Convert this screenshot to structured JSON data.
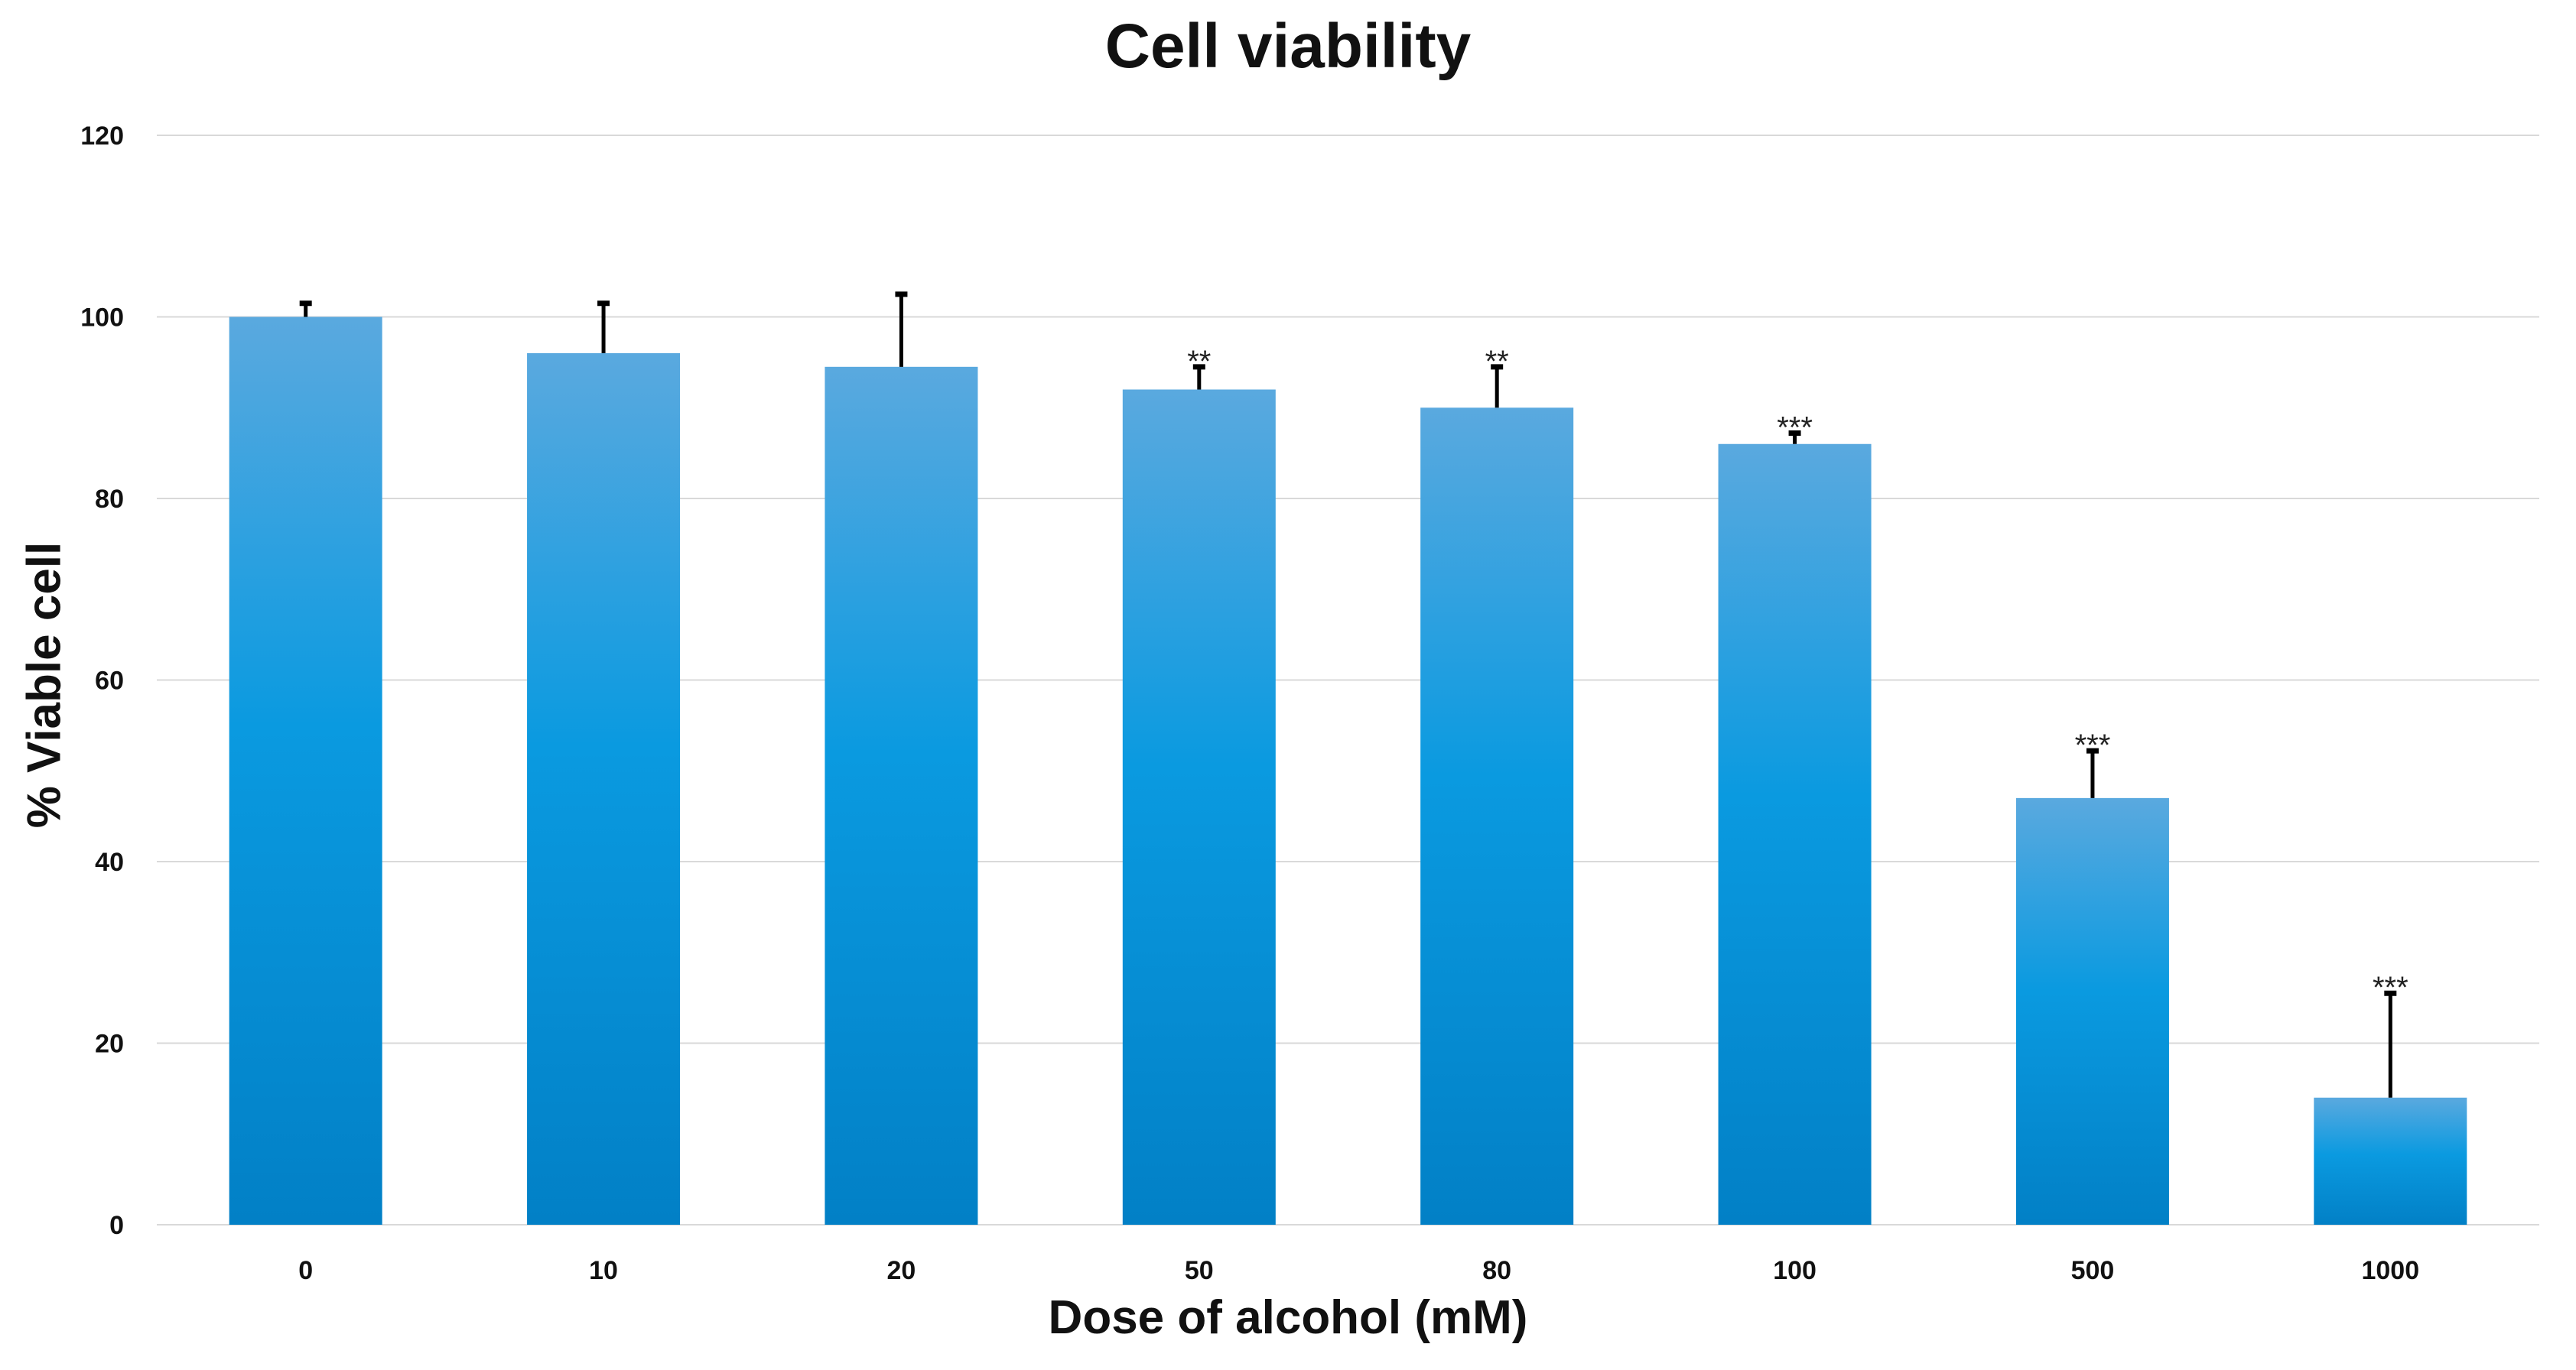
{
  "chart_data": {
    "type": "bar",
    "title": "Cell viability",
    "xlabel": "Dose of alcohol (mM)",
    "ylabel": "% Viable cell",
    "categories": [
      "0",
      "10",
      "20",
      "50",
      "80",
      "100",
      "500",
      "1000"
    ],
    "values": [
      100,
      96,
      94.5,
      92,
      90,
      86,
      47,
      14
    ],
    "error": [
      1.5,
      5.5,
      8,
      2.5,
      4.5,
      1.2,
      5.2,
      11.5
    ],
    "significance": [
      "",
      "",
      "",
      "**",
      "**",
      "***",
      "***",
      "***"
    ],
    "ylim": [
      0,
      120
    ],
    "yticks": [
      0,
      20,
      40,
      60,
      80,
      100,
      120
    ],
    "grid": true,
    "colors": {
      "bar_top": "#5aa9df",
      "bar_mid": "#0a9ae0",
      "bar_bottom": "#0280c6",
      "grid": "#d9d9d9",
      "error": "#000000"
    }
  }
}
